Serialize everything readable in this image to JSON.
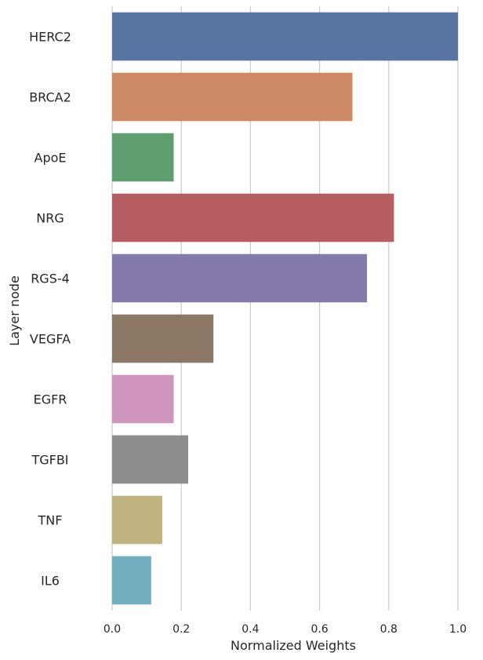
{
  "chart_data": {
    "type": "bar",
    "orientation": "horizontal",
    "categories": [
      "HERC2",
      "BRCA2",
      "ApoE",
      "NRG",
      "RGS-4",
      "VEGFA",
      "EGFR",
      "TGFBI",
      "TNF",
      "IL6"
    ],
    "values": [
      1.0,
      0.695,
      0.178,
      0.815,
      0.737,
      0.293,
      0.178,
      0.22,
      0.145,
      0.113
    ],
    "colors": [
      "#5875a4",
      "#cc8963",
      "#5f9e6e",
      "#b55d60",
      "#857aab",
      "#8d7866",
      "#d095bf",
      "#8c8c8c",
      "#c1b37f",
      "#71aec0"
    ],
    "xlabel": "Normalized Weights",
    "ylabel": "Layer node",
    "xlim": [
      0,
      1.0
    ],
    "xticks": [
      "0.0",
      "0.2",
      "0.4",
      "0.6",
      "0.8",
      "1.0"
    ],
    "grid": "vertical"
  }
}
